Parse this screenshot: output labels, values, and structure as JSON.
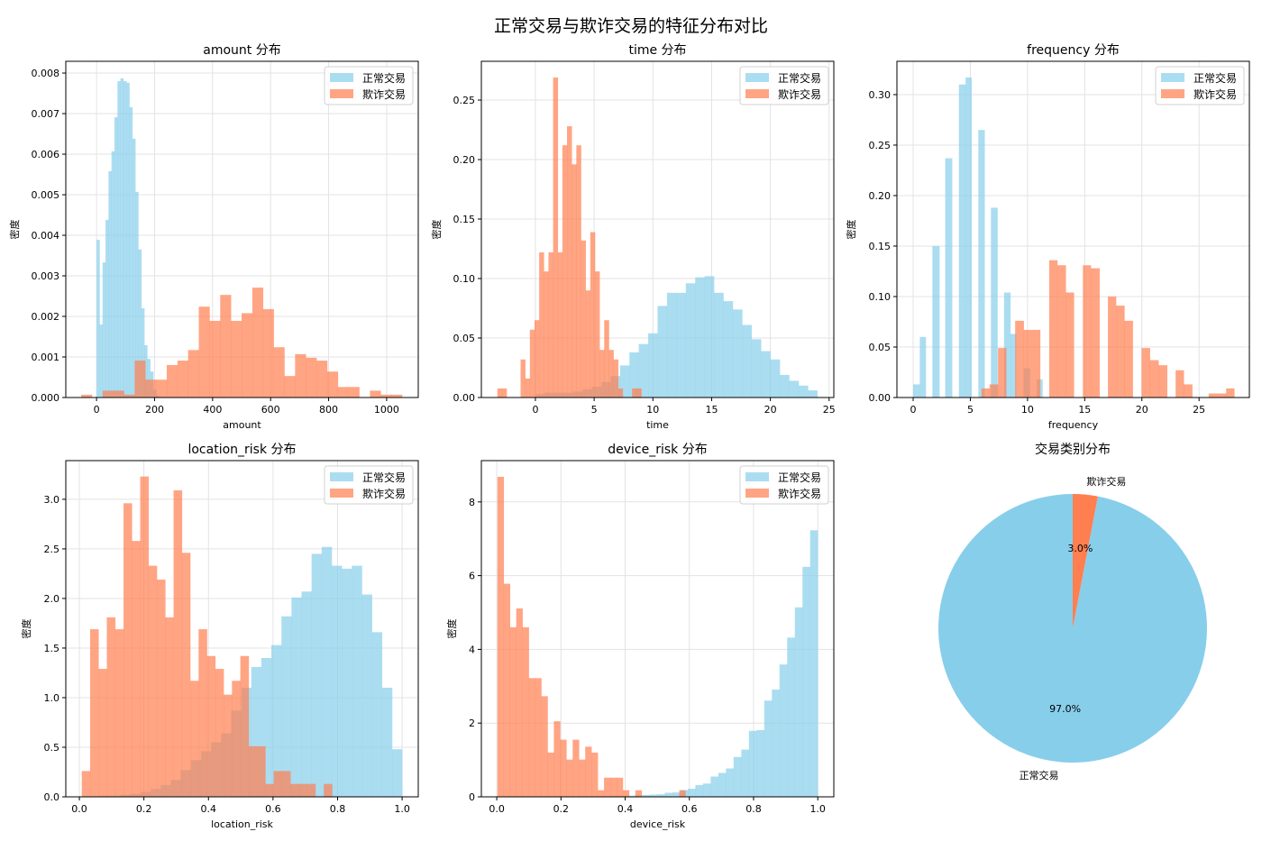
{
  "title": "正常交易与欺诈交易的特征分布对比",
  "chart_data": [
    {
      "type": "histogram",
      "title": "amount 分布",
      "xlabel": "amount",
      "ylabel": "密度",
      "xlim": [
        -106,
        1109
      ],
      "ylim": [
        0,
        0.00829
      ],
      "xticks": [
        "0",
        "200",
        "400",
        "600",
        "800",
        "1000"
      ],
      "yticks": [
        "0.000",
        "0.001",
        "0.002",
        "0.003",
        "0.004",
        "0.005",
        "0.006",
        "0.007",
        "0.008"
      ],
      "grid": true,
      "legend": [
        "正常交易",
        "欺诈交易"
      ],
      "legend_position": "top-right",
      "series": [
        {
          "name": "正常交易",
          "color": "#87CEEB",
          "alpha": 0.7,
          "range": [
            0,
            216
          ],
          "densities": [
            0.00389,
            0.0018,
            0.00333,
            0.00438,
            0.00558,
            0.00607,
            0.00691,
            0.0078,
            0.00787,
            0.0078,
            0.00776,
            0.00716,
            0.00638,
            0.00507,
            0.00365,
            0.0022,
            0.00129,
            0.00095,
            0.00064,
            0.0002,
            5e-05
          ]
        },
        {
          "name": "欺诈交易",
          "color": "#FF7F50",
          "alpha": 0.7,
          "range": [
            -53,
            1053
          ],
          "densities": [
            7e-05,
            0,
            0.00017,
            0.00017,
            7e-05,
            0.00091,
            0.00044,
            0.00044,
            0.0008,
            0.00091,
            0.00117,
            0.00224,
            0.00189,
            0.00253,
            0.00189,
            0.00208,
            0.00271,
            0.00218,
            0.00124,
            0.00053,
            0.00107,
            0.00098,
            0.00091,
            0.00064,
            0.00026,
            0.00026,
            0,
            0.00017,
            7e-05,
            7e-05
          ]
        }
      ]
    },
    {
      "type": "histogram",
      "title": "time 分布",
      "xlabel": "time",
      "ylabel": "密度",
      "xlim": [
        -4.6,
        25.4
      ],
      "ylim": [
        0,
        0.2826
      ],
      "xticks": [
        "0",
        "5",
        "10",
        "15",
        "20",
        "25"
      ],
      "yticks": [
        "0.00",
        "0.05",
        "0.10",
        "0.15",
        "0.20",
        "0.25"
      ],
      "grid": true,
      "legend": [
        "正常交易",
        "欺诈交易"
      ],
      "legend_position": "top-right",
      "series": [
        {
          "name": "正常交易",
          "color": "#87CEEB",
          "alpha": 0.7,
          "range": [
            0,
            24
          ],
          "densities": [
            0.003,
            0.004,
            0.004,
            0.004,
            0.005,
            0.007,
            0.009,
            0.013,
            0.018,
            0.027,
            0.038,
            0.045,
            0.054,
            0.077,
            0.088,
            0.088,
            0.096,
            0.101,
            0.102,
            0.088,
            0.081,
            0.074,
            0.061,
            0.049,
            0.039,
            0.032,
            0.019,
            0.014,
            0.01,
            0.006
          ]
        },
        {
          "name": "欺诈交易",
          "color": "#FF7F50",
          "alpha": 0.7,
          "range": [
            -3.24,
            9.02
          ],
          "densities": [
            0.0076,
            0.0076,
            0,
            0,
            0,
            0.032,
            0.016,
            0.057,
            0.065,
            0.122,
            0.106,
            0.122,
            0.269,
            0.122,
            0.212,
            0.228,
            0.196,
            0.212,
            0.132,
            0.09,
            0.139,
            0.106,
            0.04,
            0.065,
            0.04,
            0.032,
            0.0076,
            0,
            0,
            0.0076,
            0.0076
          ]
        }
      ]
    },
    {
      "type": "histogram",
      "title": "frequency 分布",
      "xlabel": "frequency",
      "ylabel": "密度",
      "xlim": [
        -1.42,
        29.4
      ],
      "ylim": [
        0,
        0.333
      ],
      "xticks": [
        "0",
        "5",
        "10",
        "15",
        "20",
        "25"
      ],
      "yticks": [
        "0.00",
        "0.05",
        "0.10",
        "0.15",
        "0.20",
        "0.25",
        "0.30"
      ],
      "grid": true,
      "legend": [
        "正常交易",
        "欺诈交易"
      ],
      "legend_position": "top-right",
      "series": [
        {
          "name": "正常交易",
          "color": "#87CEEB",
          "alpha": 0.7,
          "bins": [
            [
              0,
              0.58,
              0.013
            ],
            [
              0.58,
              1.1,
              0.06
            ],
            [
              1.68,
              2.29,
              0.15
            ],
            [
              2.8,
              3.4,
              0.237
            ],
            [
              4.0,
              4.58,
              0.31
            ],
            [
              4.58,
              5.1,
              0.317
            ],
            [
              5.7,
              6.24,
              0.265
            ],
            [
              6.8,
              7.37,
              0.188
            ],
            [
              7.95,
              8.5,
              0.104
            ],
            [
              8.5,
              9.0,
              0.063
            ],
            [
              9.66,
              10.2,
              0.029
            ],
            [
              10.8,
              11.3,
              0.018
            ]
          ]
        },
        {
          "name": "欺诈交易",
          "color": "#FF7F50",
          "alpha": 0.7,
          "bins": [
            [
              5.97,
              6.68,
              0.009
            ],
            [
              6.68,
              7.42,
              0.013
            ],
            [
              7.42,
              8.13,
              0.049
            ],
            [
              8.92,
              9.66,
              0.076
            ],
            [
              9.66,
              11.1,
              0.067
            ],
            [
              11.9,
              12.6,
              0.136
            ],
            [
              12.6,
              13.34,
              0.131
            ],
            [
              13.34,
              14.05,
              0.104
            ],
            [
              14.84,
              15.53,
              0.131
            ],
            [
              15.53,
              16.29,
              0.128
            ],
            [
              17.03,
              17.74,
              0.1
            ],
            [
              17.74,
              18.47,
              0.091
            ],
            [
              18.47,
              19.2,
              0.076
            ],
            [
              19.97,
              20.7,
              0.049
            ],
            [
              20.7,
              21.45,
              0.037
            ],
            [
              21.45,
              22.2,
              0.032
            ],
            [
              22.95,
              23.66,
              0.027
            ],
            [
              23.66,
              24.4,
              0.013
            ],
            [
              25.84,
              27.37,
              0.004
            ],
            [
              27.37,
              28.08,
              0.009
            ]
          ]
        }
      ]
    },
    {
      "type": "histogram",
      "title": "location_risk 分布",
      "xlabel": "location_risk",
      "ylabel": "密度",
      "xlim": [
        -0.042,
        1.05
      ],
      "ylim": [
        0,
        3.39
      ],
      "xticks": [
        "0.0",
        "0.2",
        "0.4",
        "0.6",
        "0.8",
        "1.0"
      ],
      "yticks": [
        "0.0",
        "0.5",
        "1.0",
        "1.5",
        "2.0",
        "2.5",
        "3.0"
      ],
      "grid": true,
      "legend": [
        "正常交易",
        "欺诈交易"
      ],
      "legend_position": "top-right",
      "series": [
        {
          "name": "正常交易",
          "color": "#87CEEB",
          "alpha": 0.7,
          "range": [
            0.065,
            1.0
          ],
          "densities": [
            0.01,
            0.01,
            0.02,
            0.03,
            0.05,
            0.08,
            0.12,
            0.17,
            0.27,
            0.37,
            0.46,
            0.55,
            0.64,
            0.87,
            1.1,
            1.31,
            1.4,
            1.53,
            1.82,
            2.01,
            2.07,
            2.45,
            2.52,
            2.33,
            2.3,
            2.33,
            2.04,
            1.66,
            1.1,
            0.48
          ]
        },
        {
          "name": "欺诈交易",
          "color": "#FF7F50",
          "alpha": 0.7,
          "range": [
            0.0075,
            0.783
          ],
          "densities": [
            0.26,
            1.69,
            1.29,
            1.81,
            1.69,
            2.96,
            2.58,
            3.23,
            2.33,
            2.19,
            1.81,
            3.09,
            2.46,
            1.17,
            1.69,
            1.42,
            1.29,
            1.03,
            1.17,
            1.42,
            0.51,
            0.51,
            0.13,
            0.26,
            0.26,
            0.13,
            0.13,
            0.13,
            0,
            0.13
          ]
        }
      ]
    },
    {
      "type": "histogram",
      "title": "device_risk 分布",
      "xlabel": "device_risk",
      "ylabel": "密度",
      "xlim": [
        -0.048,
        1.05
      ],
      "ylim": [
        0,
        9.12
      ],
      "xticks": [
        "0.0",
        "0.2",
        "0.4",
        "0.6",
        "0.8",
        "1.0"
      ],
      "yticks": [
        "0",
        "2",
        "4",
        "6",
        "8"
      ],
      "grid": true,
      "legend": [
        "正常交易",
        "欺诈交易"
      ],
      "legend_position": "top-right",
      "series": [
        {
          "name": "正常交易",
          "color": "#87CEEB",
          "alpha": 0.7,
          "range": [
            0.285,
            1.0
          ],
          "densities": [
            0.01,
            0.01,
            0.01,
            0.02,
            0.02,
            0.03,
            0.04,
            0.05,
            0.06,
            0.07,
            0.11,
            0.12,
            0.18,
            0.22,
            0.32,
            0.36,
            0.55,
            0.65,
            0.77,
            1.08,
            1.28,
            1.79,
            1.81,
            2.61,
            2.91,
            3.59,
            4.32,
            5.14,
            6.24,
            7.23
          ]
        },
        {
          "name": "欺诈交易",
          "color": "#FF7F50",
          "alpha": 0.7,
          "range": [
            0.002,
            0.588
          ],
          "densities": [
            8.68,
            5.78,
            4.6,
            5.11,
            4.6,
            3.22,
            3.22,
            2.73,
            1.2,
            2.05,
            1.55,
            1.01,
            1.55,
            1.01,
            1.36,
            1.2,
            0.18,
            0.52,
            0.52,
            0.52,
            0.18,
            0,
            0.18,
            0,
            0,
            0,
            0,
            0,
            0,
            0.18
          ]
        }
      ]
    },
    {
      "type": "pie",
      "title": "交易类别分布",
      "labels": [
        "正常交易",
        "欺诈交易"
      ],
      "values": [
        97.0,
        3.0
      ],
      "pct_labels": [
        "97.0%",
        "3.0%"
      ],
      "colors": [
        "#87CEEB",
        "#FF7F50"
      ],
      "start_angle": 90
    }
  ]
}
